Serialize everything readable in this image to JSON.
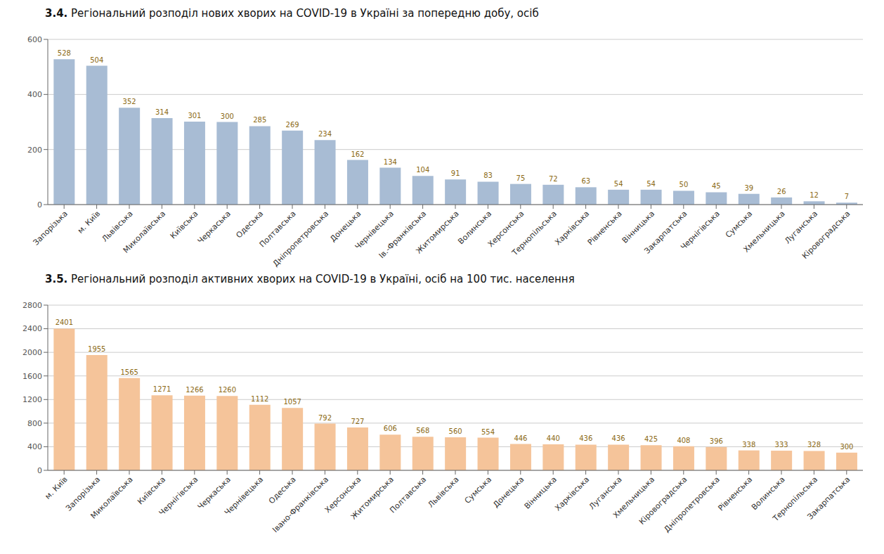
{
  "chart_data": [
    {
      "type": "bar",
      "title": "3.4. Регіональний розподіл нових хворих на COVID-19 в Україні за попередню добу, осіб",
      "categories": [
        "Запорізька",
        "м. Київ",
        "Львівська",
        "Миколаївська",
        "Київська",
        "Черкаська",
        "Одеська",
        "Полтавська",
        "Дніпропетровська",
        "Донецька",
        "Чернівецька",
        "Ів.-Франківська",
        "Житомирська",
        "Волинська",
        "Херсонська",
        "Тернопільська",
        "Харківська",
        "Рівненська",
        "Вінницька",
        "Закарпатська",
        "Чернігівська",
        "Сумська",
        "Хмельницька",
        "Луганська",
        "Кіровоградська"
      ],
      "values": [
        528,
        504,
        352,
        314,
        301,
        300,
        285,
        269,
        234,
        162,
        134,
        104,
        91,
        83,
        75,
        72,
        63,
        54,
        54,
        50,
        45,
        39,
        26,
        12,
        7
      ],
      "color": "#a8bcd4",
      "ylim": [
        0,
        600
      ],
      "yticks": [
        0,
        200,
        400,
        600
      ],
      "grid": true,
      "data_labels": true
    },
    {
      "type": "bar",
      "title": "3.5. Регіональний розподіл активних хворих на COVID-19 в Україні, осіб на 100 тис. населення",
      "categories": [
        "м. Київ",
        "Запорізька",
        "Миколаївська",
        "Київська",
        "Чернігівська",
        "Черкаська",
        "Чернівецька",
        "Одеська",
        "Івано-Франківська",
        "Херсонська",
        "Житомирська",
        "Полтавська",
        "Львівська",
        "Сумська",
        "Донецька",
        "Вінницька",
        "Харківська",
        "Луганська",
        "Хмельницька",
        "Кіровоградська",
        "Дніпропетровська",
        "Рівненська",
        "Волинська",
        "Тернопільська",
        "Закарпатська"
      ],
      "values": [
        2401,
        1955,
        1565,
        1271,
        1266,
        1260,
        1112,
        1057,
        792,
        727,
        606,
        568,
        560,
        554,
        446,
        440,
        436,
        436,
        425,
        408,
        396,
        338,
        333,
        328,
        300
      ],
      "color": "#f5c49a",
      "ylim": [
        0,
        2800
      ],
      "yticks": [
        0,
        400,
        800,
        1200,
        1600,
        2000,
        2400,
        2800
      ],
      "grid": true,
      "data_labels": true
    }
  ]
}
